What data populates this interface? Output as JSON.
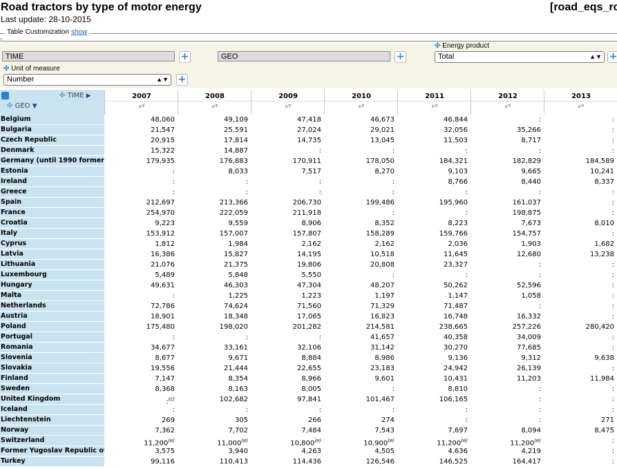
{
  "header": {
    "title": "Road tractors by type of motor energy",
    "code": "[road_eqs_rc",
    "last_update": "Last update: 28-10-2015",
    "customization_label": "Table Customization",
    "customization_link": "show"
  },
  "dimensions": {
    "time_label": "TIME",
    "geo_label": "GEO",
    "unit_label": "Unit of measure",
    "unit_value": "Number",
    "energy_label": "Energy product",
    "energy_value": "Total"
  },
  "table": {
    "corner_time": "TIME",
    "corner_geo": "GEO",
    "years": [
      "2007",
      "2008",
      "2009",
      "2010",
      "2011",
      "2012",
      "2013"
    ],
    "rows": [
      {
        "geo": "Belgium",
        "values": [
          "48,060",
          "49,109",
          "47,418",
          "46,673",
          "46,844",
          ":",
          ":"
        ]
      },
      {
        "geo": "Bulgaria",
        "values": [
          "21,547",
          "25,591",
          "27,024",
          "29,021",
          "32,056",
          "35,266",
          ":"
        ]
      },
      {
        "geo": "Czech Republic",
        "values": [
          "20,915",
          "17,814",
          "14,735",
          "13,045",
          "11,503",
          "8,717",
          ":"
        ]
      },
      {
        "geo": "Denmark",
        "values": [
          "15,322",
          "14,887",
          ":",
          ":",
          ":",
          ":",
          ":"
        ]
      },
      {
        "geo": "Germany (until 1990 former t",
        "values": [
          "179,935",
          "176,883",
          "170,911",
          "178,050",
          "184,321",
          "182,829",
          "184,589"
        ]
      },
      {
        "geo": "Estonia",
        "values": [
          ":",
          "8,033",
          "7,517",
          "8,270",
          "9,103",
          "9,665",
          "10,241"
        ]
      },
      {
        "geo": "Ireland",
        "values": [
          ":",
          ":",
          ":",
          ":",
          "8,766",
          "8,440",
          "8,337"
        ]
      },
      {
        "geo": "Greece",
        "values": [
          ":",
          ":",
          ":",
          ":",
          ":",
          ":",
          ":"
        ]
      },
      {
        "geo": "Spain",
        "values": [
          "212,697",
          "213,366",
          "206,730",
          "199,486",
          "195,960",
          "161,037",
          ":"
        ]
      },
      {
        "geo": "France",
        "values": [
          "254,970",
          "222,059",
          "211,918",
          ":",
          ":",
          "198,875",
          ":"
        ]
      },
      {
        "geo": "Croatia",
        "values": [
          "9,223",
          "9,559",
          "8,906",
          "8,352",
          "8,223",
          "7,673",
          "8,010"
        ]
      },
      {
        "geo": "Italy",
        "values": [
          "153,912",
          "157,007",
          "157,807",
          "158,289",
          "159,766",
          "154,757",
          ":"
        ]
      },
      {
        "geo": "Cyprus",
        "values": [
          "1,812",
          "1,984",
          "2,162",
          "2,162",
          "2,036",
          "1,903",
          "1,682"
        ]
      },
      {
        "geo": "Latvia",
        "values": [
          "16,386",
          "15,827",
          "14,195",
          "10,518",
          "11,645",
          "12,680",
          "13,238"
        ]
      },
      {
        "geo": "Lithuania",
        "values": [
          "21,076",
          "21,375",
          "19,806",
          "20,808",
          "23,327",
          ":",
          ":"
        ]
      },
      {
        "geo": "Luxembourg",
        "values": [
          "5,489",
          "5,848",
          "5,550",
          ":",
          ":",
          ":",
          ":"
        ]
      },
      {
        "geo": "Hungary",
        "values": [
          "49,631",
          "46,303",
          "47,304",
          "48,207",
          "50,262",
          "52,596",
          ":"
        ]
      },
      {
        "geo": "Malta",
        "values": [
          ":",
          "1,225",
          "1,223",
          "1,197",
          "1,147",
          "1,058",
          ":"
        ]
      },
      {
        "geo": "Netherlands",
        "values": [
          "72,786",
          "74,624",
          "71,560",
          "71,329",
          "71,487",
          ":",
          ":"
        ]
      },
      {
        "geo": "Austria",
        "values": [
          "18,901",
          "18,348",
          "17,065",
          "16,823",
          "16,748",
          "16,332",
          ":"
        ]
      },
      {
        "geo": "Poland",
        "values": [
          "175,480",
          "198,020",
          "201,282",
          "214,581",
          "238,665",
          "257,226",
          "280,420"
        ]
      },
      {
        "geo": "Portugal",
        "values": [
          ":",
          ":",
          ":",
          "41,657",
          "40,358",
          "34,009",
          ":"
        ]
      },
      {
        "geo": "Romania",
        "values": [
          "34,677",
          "33,161",
          "32,106",
          "31,142",
          "30,270",
          "77,685",
          ":"
        ]
      },
      {
        "geo": "Slovenia",
        "values": [
          "8,677",
          "9,671",
          "8,884",
          "8,986",
          "9,136",
          "9,312",
          "9,638"
        ]
      },
      {
        "geo": "Slovakia",
        "values": [
          "19,556",
          "21,444",
          "22,655",
          "23,183",
          "24,942",
          "26,139",
          ":"
        ]
      },
      {
        "geo": "Finland",
        "values": [
          "7,147",
          "8,354",
          "8,966",
          "9,601",
          "10,431",
          "11,203",
          "11,984"
        ]
      },
      {
        "geo": "Sweden",
        "values": [
          "8,368",
          "8,163",
          "8,005",
          ":",
          "8,810",
          ":",
          ":"
        ]
      },
      {
        "geo": "United Kingdom",
        "values": [
          ":",
          "102,682",
          "97,841",
          "101,467",
          "106,165",
          ":",
          ":"
        ],
        "flags": [
          "(c)",
          "",
          "",
          "",
          "",
          "",
          ""
        ]
      },
      {
        "geo": "Iceland",
        "values": [
          ":",
          ":",
          ":",
          ":",
          ":",
          ":",
          ":"
        ]
      },
      {
        "geo": "Liechtenstein",
        "values": [
          "269",
          "305",
          "266",
          "274",
          ":",
          ":",
          "271"
        ]
      },
      {
        "geo": "Norway",
        "values": [
          "7,362",
          "7,702",
          "7,484",
          "7,543",
          "7,697",
          "8,094",
          "8,475"
        ]
      },
      {
        "geo": "Switzerland",
        "values": [
          "11,200",
          "11,000",
          "10,800",
          "10,900",
          "11,200",
          "11,200",
          ":"
        ],
        "flags": [
          "(e)",
          "(e)",
          "(e)",
          "(e)",
          "(e)",
          "(e)",
          ""
        ]
      },
      {
        "geo": "Former Yugoslav Republic of",
        "values": [
          "3,575",
          "3,940",
          "4,263",
          "4,505",
          "4,636",
          "4,219",
          ":"
        ]
      },
      {
        "geo": "Turkey",
        "values": [
          "99,116",
          "110,413",
          "114,436",
          "126,546",
          "146,525",
          "164,417",
          ":"
        ]
      }
    ]
  }
}
